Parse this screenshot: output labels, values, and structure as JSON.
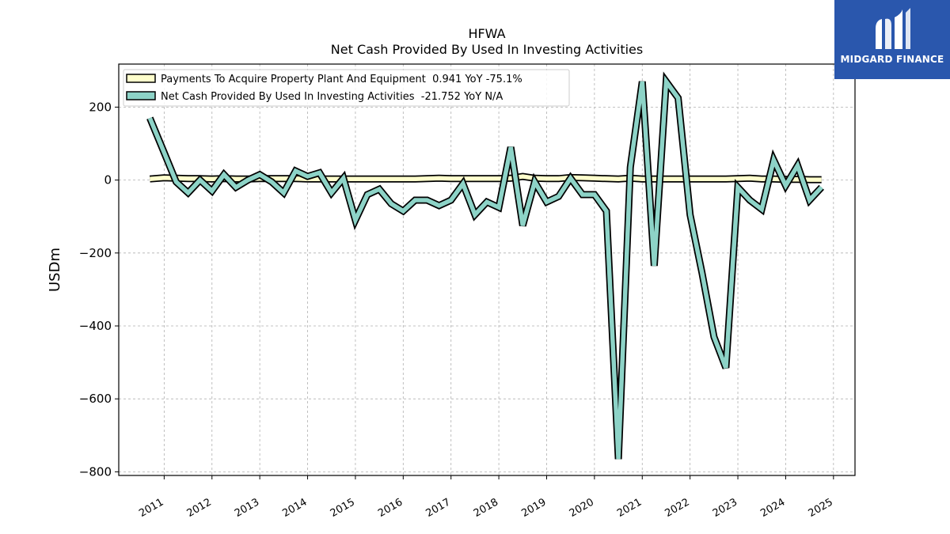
{
  "chart_data": {
    "type": "line",
    "title": "HFWA",
    "subtitle": "Net Cash Provided By Used In Investing Activities",
    "ylabel": "USDm",
    "xlabel": "",
    "ylim": [
      -810,
      318
    ],
    "xlim": [
      2010.05,
      2025.45
    ],
    "yticks": [
      200,
      0,
      -200,
      -400,
      -600,
      -800
    ],
    "ytick_labels": [
      "200",
      "0",
      "−200",
      "−400",
      "−600",
      "−800"
    ],
    "xticks": [
      2011,
      2012,
      2013,
      2014,
      2015,
      2016,
      2017,
      2018,
      2019,
      2020,
      2021,
      2022,
      2023,
      2024,
      2025
    ],
    "xtick_labels": [
      "2011",
      "2012",
      "2013",
      "2014",
      "2015",
      "2016",
      "2017",
      "2018",
      "2019",
      "2020",
      "2021",
      "2022",
      "2023",
      "2024",
      "2025"
    ],
    "grid": true,
    "legend_position": "top-left",
    "series": [
      {
        "name": "Payments To Acquire Property Plant And Equipment  0.941 YoY -75.1%",
        "color": "#ffffcc",
        "x": [
          2010.7,
          2011.0,
          2011.25,
          2011.5,
          2011.75,
          2012.0,
          2012.25,
          2012.5,
          2012.75,
          2013.0,
          2013.25,
          2013.5,
          2013.75,
          2014.0,
          2014.25,
          2014.5,
          2014.75,
          2015.0,
          2015.25,
          2015.5,
          2015.75,
          2016.0,
          2016.25,
          2016.5,
          2016.75,
          2017.0,
          2017.25,
          2017.5,
          2017.75,
          2018.0,
          2018.25,
          2018.5,
          2018.75,
          2019.0,
          2019.25,
          2019.5,
          2019.75,
          2020.0,
          2020.25,
          2020.5,
          2020.75,
          2021.0,
          2021.25,
          2021.5,
          2021.75,
          2022.0,
          2022.25,
          2022.5,
          2022.75,
          2023.0,
          2023.25,
          2023.5,
          2023.75,
          2024.0,
          2024.25,
          2024.5,
          2024.75
        ],
        "values": [
          3,
          6,
          5,
          4,
          4,
          3,
          4,
          3,
          3,
          4,
          4,
          4,
          4,
          3,
          3,
          3,
          3,
          3,
          3,
          3,
          3,
          3,
          3,
          4,
          5,
          4,
          4,
          4,
          4,
          4,
          5,
          10,
          5,
          4,
          4,
          7,
          6,
          5,
          4,
          3,
          5,
          3,
          3,
          3,
          3,
          3,
          3,
          3,
          3,
          4,
          5,
          3,
          3,
          2,
          2,
          1,
          1
        ]
      },
      {
        "name": "Net Cash Provided By Used In Investing Activities  -21.752 YoY N/A",
        "color": "#8dd3c7",
        "x": [
          2010.7,
          2011.0,
          2011.25,
          2011.5,
          2011.75,
          2012.0,
          2012.25,
          2012.5,
          2012.75,
          2013.0,
          2013.25,
          2013.5,
          2013.75,
          2014.0,
          2014.25,
          2014.5,
          2014.75,
          2015.0,
          2015.25,
          2015.5,
          2015.75,
          2016.0,
          2016.25,
          2016.5,
          2016.75,
          2017.0,
          2017.25,
          2017.5,
          2017.75,
          2018.0,
          2018.25,
          2018.5,
          2018.75,
          2019.0,
          2019.25,
          2019.5,
          2019.75,
          2020.0,
          2020.25,
          2020.5,
          2020.75,
          2021.0,
          2021.25,
          2021.5,
          2021.75,
          2022.0,
          2022.25,
          2022.5,
          2022.75,
          2023.0,
          2023.25,
          2023.5,
          2023.75,
          2024.0,
          2024.25,
          2024.5,
          2024.75
        ],
        "values": [
          170,
          75,
          -5,
          -35,
          0,
          -30,
          15,
          -20,
          0,
          15,
          -5,
          -35,
          25,
          10,
          20,
          -35,
          5,
          -110,
          -40,
          -25,
          -65,
          -85,
          -55,
          -55,
          -70,
          -55,
          -10,
          -95,
          -60,
          -75,
          90,
          -125,
          -5,
          -60,
          -45,
          5,
          -40,
          -40,
          -85,
          -765,
          35,
          270,
          -235,
          270,
          225,
          -95,
          -255,
          -430,
          -515,
          -20,
          -55,
          -80,
          55,
          -15,
          40,
          -55,
          -20
        ]
      }
    ]
  },
  "brand": {
    "name": "MIDGARD FINANCE",
    "color": "#2a57ad"
  }
}
